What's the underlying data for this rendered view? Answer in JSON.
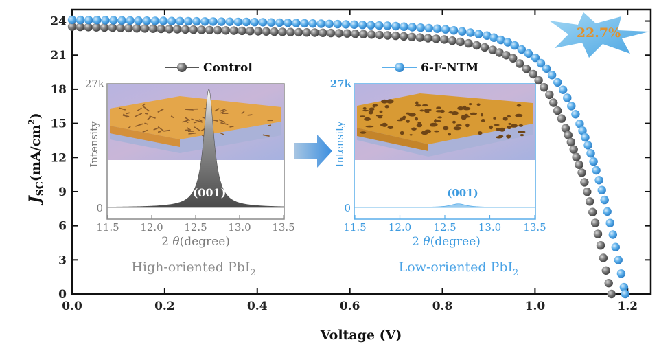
{
  "chart_data": {
    "type": "scatter",
    "xlabel": "Voltage (V)",
    "ylabel_main": "J",
    "ylabel_sub": "SC",
    "ylabel_unit": "(mA/cm",
    "ylabel_sup": "2",
    "ylabel_close": ")",
    "xlim": [
      0,
      1.25
    ],
    "ylim": [
      0,
      25
    ],
    "x_ticks": [
      "0.0",
      "0.2",
      "0.4",
      "0.6",
      "0.8",
      "1.0",
      "1.2"
    ],
    "y_ticks": [
      "0",
      "3",
      "6",
      "9",
      "12",
      "15",
      "18",
      "21",
      "24"
    ],
    "series": [
      {
        "name": "Control",
        "color": "#6b6b6b",
        "x": [
          0.0,
          0.1,
          0.2,
          0.3,
          0.4,
          0.5,
          0.6,
          0.7,
          0.8,
          0.85,
          0.9,
          0.95,
          1.0,
          1.03,
          1.06,
          1.08,
          1.1,
          1.12,
          1.14,
          1.15,
          1.16,
          1.165
        ],
        "y": [
          23.5,
          23.4,
          23.3,
          23.2,
          23.1,
          23.0,
          22.9,
          22.7,
          22.4,
          22.1,
          21.6,
          20.8,
          19.2,
          17.6,
          15.2,
          13.1,
          10.8,
          7.9,
          4.6,
          2.7,
          0.8,
          0.0
        ]
      },
      {
        "name": "6-F-NTM",
        "color": "#5aaeea",
        "x": [
          0.0,
          0.1,
          0.2,
          0.3,
          0.4,
          0.5,
          0.6,
          0.7,
          0.8,
          0.85,
          0.9,
          0.95,
          1.0,
          1.03,
          1.06,
          1.09,
          1.11,
          1.13,
          1.15,
          1.17,
          1.18,
          1.19,
          1.195
        ],
        "y": [
          24.1,
          24.05,
          24.0,
          23.95,
          23.9,
          23.8,
          23.7,
          23.55,
          23.3,
          23.05,
          22.7,
          22.0,
          20.8,
          19.6,
          18.0,
          15.6,
          13.6,
          11.2,
          8.3,
          4.9,
          3.0,
          1.0,
          0.0
        ]
      }
    ],
    "annotation": "22.7%",
    "insets": [
      {
        "side": "left",
        "ytick_top": "27k",
        "ytick_bottom": "0",
        "ylabel": "Intensity",
        "xticks": [
          "11.5",
          "12.0",
          "12.5",
          "13.0",
          "13.5"
        ],
        "xlabel_prefix": "2 ",
        "xlabel_theta": "θ",
        "xlabel_suffix": "(degree)",
        "peak_label": "(001)",
        "caption_main": "High-oriented PbI",
        "caption_sub": "2",
        "peak_center": 12.65,
        "peak_height_fraction": 0.98
      },
      {
        "side": "right",
        "ytick_top": "27k",
        "ytick_bottom": "0",
        "ylabel": "Intensity",
        "xticks": [
          "11.5",
          "12.0",
          "12.5",
          "13.0",
          "13.5"
        ],
        "xlabel_prefix": "2 ",
        "xlabel_theta": "θ",
        "xlabel_suffix": "(degree)",
        "peak_label": "(001)",
        "caption_main": "Low-oriented PbI",
        "caption_sub": "2",
        "peak_center": 12.65,
        "peak_height_fraction": 0.03
      }
    ]
  }
}
